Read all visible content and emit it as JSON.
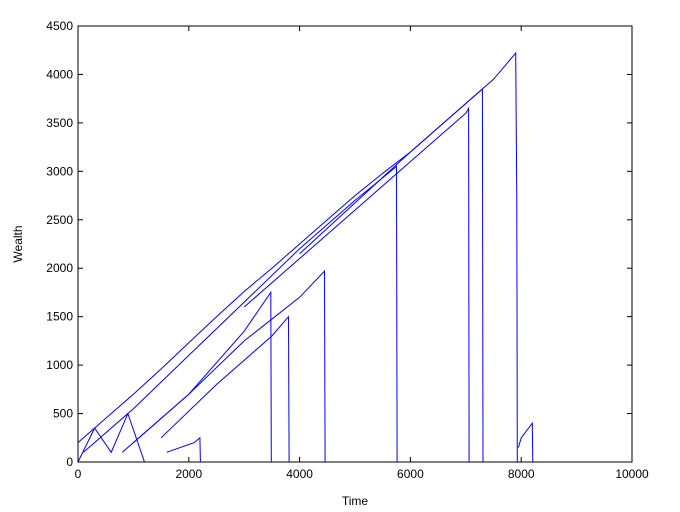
{
  "chart_data": {
    "type": "line",
    "xlabel": "Time",
    "ylabel": "Wealth",
    "color": "#0000ff",
    "xlim": [
      0,
      10000
    ],
    "ylim": [
      0,
      4500
    ],
    "xticks": [
      0,
      2000,
      4000,
      6000,
      8000,
      10000
    ],
    "yticks": [
      0,
      500,
      1000,
      1500,
      2000,
      2500,
      3000,
      3500,
      4000,
      4500
    ],
    "grid": false,
    "series": [
      {
        "x": [
          0,
          500,
          1000,
          1500,
          2000,
          2500,
          3000,
          3500,
          4000,
          4500,
          5000,
          5500,
          6000,
          6500,
          7000,
          7500,
          7900,
          7920,
          7930
        ],
        "values": [
          200,
          450,
          700,
          960,
          1230,
          1500,
          1760,
          2000,
          2250,
          2500,
          2750,
          2980,
          3200,
          3450,
          3700,
          3950,
          4220,
          2700,
          0
        ]
      },
      {
        "x": [
          100,
          1000,
          2000,
          3000,
          4000,
          5000,
          5750,
          5760
        ],
        "values": [
          100,
          550,
          1100,
          1650,
          2200,
          2700,
          3050,
          0
        ]
      },
      {
        "x": [
          1000,
          2000,
          3000,
          4000,
          4450,
          4460
        ],
        "values": [
          200,
          700,
          1250,
          1700,
          1970,
          0
        ]
      },
      {
        "x": [
          1500,
          2500,
          3500,
          3800,
          3810
        ],
        "values": [
          250,
          800,
          1300,
          1500,
          0
        ]
      },
      {
        "x": [
          800,
          2000,
          3000,
          3480,
          3490
        ],
        "values": [
          100,
          700,
          1350,
          1750,
          0
        ]
      },
      {
        "x": [
          3000,
          5000,
          6000,
          7000,
          7050,
          7060
        ],
        "values": [
          1600,
          2600,
          3100,
          3600,
          3650,
          0
        ]
      },
      {
        "x": [
          4000,
          6000,
          7300,
          7310
        ],
        "values": [
          2150,
          3200,
          3850,
          0
        ]
      },
      {
        "x": [
          7950,
          8000,
          8200,
          8210
        ],
        "values": [
          150,
          250,
          400,
          0
        ]
      },
      {
        "x": [
          1600,
          2100,
          2200,
          2210
        ],
        "values": [
          100,
          200,
          250,
          0
        ]
      },
      {
        "x": [
          0,
          300,
          600,
          900,
          1200
        ],
        "values": [
          0,
          350,
          100,
          500,
          0
        ]
      }
    ]
  }
}
